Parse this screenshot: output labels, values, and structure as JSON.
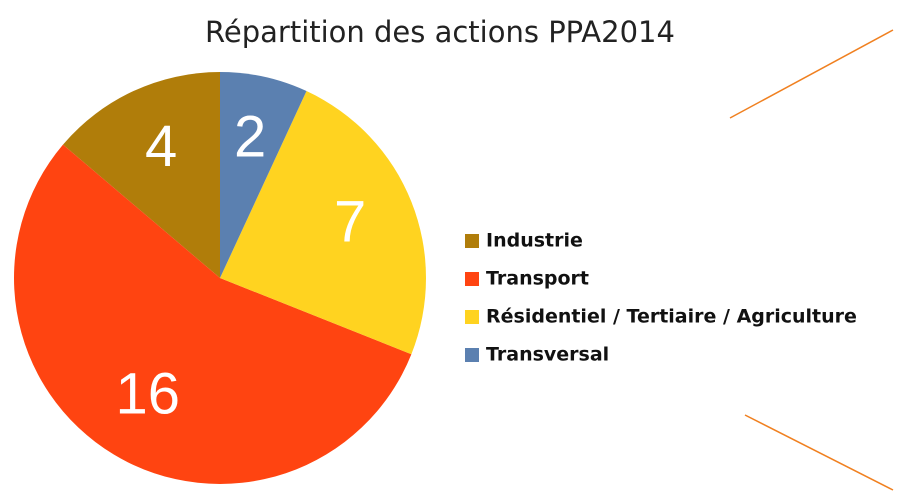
{
  "chart_data": {
    "type": "pie",
    "title": "Répartition des actions PPA2014",
    "series": [
      {
        "name": "Industrie",
        "color": "#b07d0a",
        "values": [
          4
        ]
      },
      {
        "name": "Transport",
        "color": "#ff4411",
        "values": [
          16
        ]
      },
      {
        "name": "Résidentiel / Tertiaire / Agriculture",
        "color": "#ffd320",
        "values": [
          7
        ]
      },
      {
        "name": "Transversal",
        "color": "#5b80b0",
        "values": [
          2
        ]
      }
    ],
    "legend": "right"
  }
}
